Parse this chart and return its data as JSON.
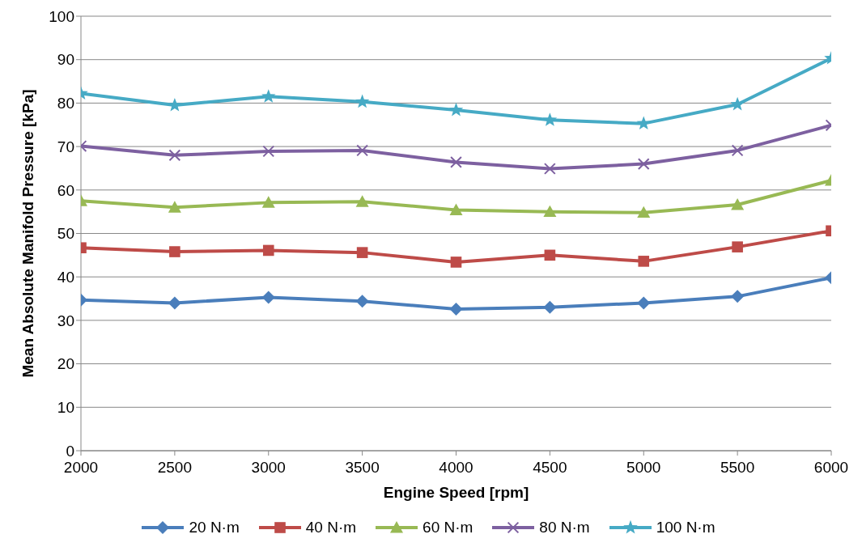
{
  "chart_data": {
    "type": "line",
    "xlabel": "Engine Speed [rpm]",
    "ylabel": "Mean Absolute Manifold Pressure [kPa]",
    "x": [
      2000,
      2500,
      3000,
      3500,
      4000,
      4500,
      5000,
      5500,
      6000
    ],
    "xlim": [
      2000,
      6000
    ],
    "xticks": [
      2000,
      2500,
      3000,
      3500,
      4000,
      4500,
      5000,
      5500,
      6000
    ],
    "ylim": [
      0,
      100
    ],
    "yticks": [
      0,
      10,
      20,
      30,
      40,
      50,
      60,
      70,
      80,
      90,
      100
    ],
    "grid": "y",
    "legend": "bottom",
    "line_style": "solid",
    "series": [
      {
        "name": "20 N·m",
        "color": "#4a7ebb",
        "marker": "diamond",
        "values": [
          34.7,
          34.0,
          35.3,
          34.4,
          32.6,
          33.0,
          34.0,
          35.5,
          39.8
        ]
      },
      {
        "name": "40 N·m",
        "color": "#be4b48",
        "marker": "square",
        "values": [
          46.7,
          45.8,
          46.1,
          45.6,
          43.4,
          45.0,
          43.6,
          46.9,
          50.6
        ]
      },
      {
        "name": "60 N·m",
        "color": "#98b954",
        "marker": "triangle",
        "values": [
          57.5,
          56.0,
          57.1,
          57.3,
          55.4,
          55.0,
          54.8,
          56.6,
          62.2
        ]
      },
      {
        "name": "80 N·m",
        "color": "#7d60a0",
        "marker": "cross",
        "values": [
          70.1,
          68.0,
          68.9,
          69.1,
          66.4,
          64.9,
          66.0,
          69.1,
          74.9
        ]
      },
      {
        "name": "100 N·m",
        "color": "#46aac5",
        "marker": "star",
        "values": [
          82.2,
          79.5,
          81.5,
          80.3,
          78.4,
          76.1,
          75.3,
          79.7,
          90.3
        ]
      }
    ]
  }
}
